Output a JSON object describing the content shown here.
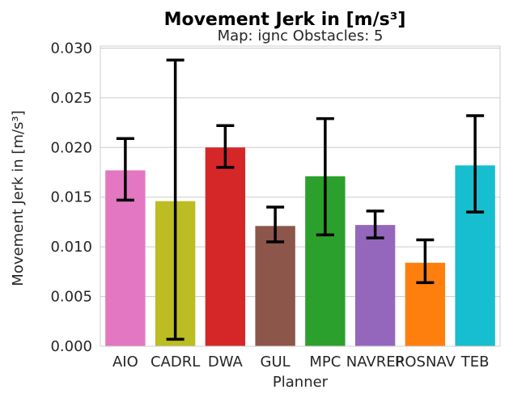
{
  "chart_data": {
    "type": "bar",
    "title": "Movement Jerk in [m/s³]",
    "subtitle": "Map: ignc Obstacles: 5",
    "xlabel": "Planner",
    "ylabel": "Movement Jerk in [m/s³]",
    "ylim": [
      0,
      0.0302
    ],
    "yticks": [
      "0.000",
      "0.005",
      "0.010",
      "0.015",
      "0.020",
      "0.025",
      "0.030"
    ],
    "ytick_values": [
      0,
      0.005,
      0.01,
      0.015,
      0.02,
      0.025,
      0.03
    ],
    "grid": "horizontal",
    "categories": [
      "AIO",
      "CADRL",
      "DWA",
      "GUL",
      "MPC",
      "NAVREP",
      "ROSNAV",
      "TEB"
    ],
    "values": [
      0.0177,
      0.0146,
      0.02,
      0.0121,
      0.0171,
      0.0122,
      0.0084,
      0.0182
    ],
    "error_low": [
      0.0147,
      0.0007,
      0.018,
      0.0105,
      0.0112,
      0.0109,
      0.0064,
      0.0135
    ],
    "error_high": [
      0.0209,
      0.0288,
      0.0222,
      0.014,
      0.0229,
      0.0136,
      0.0107,
      0.0232
    ],
    "colors": [
      "#e377c2",
      "#bcbd22",
      "#d62728",
      "#8c564b",
      "#2ca02c",
      "#9467bd",
      "#ff7f0e",
      "#17becf"
    ]
  }
}
